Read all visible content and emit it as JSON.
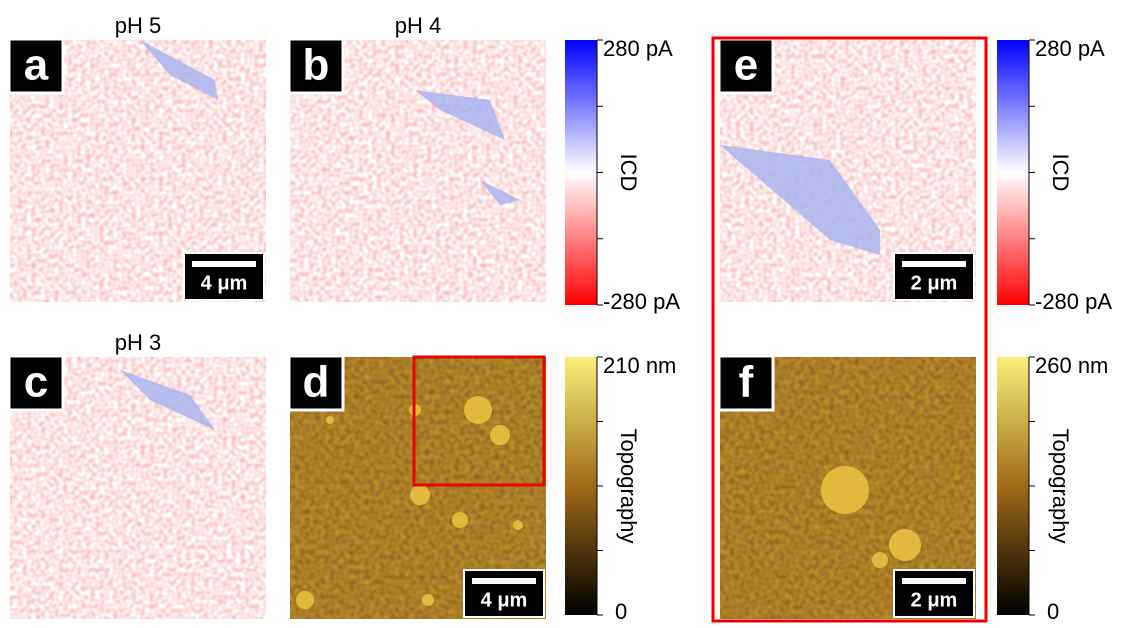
{
  "panels": [
    {
      "label": "a",
      "title": "pH 5",
      "scale_bar": "4 μm"
    },
    {
      "label": "b",
      "title": "pH 4"
    },
    {
      "label": "c",
      "title": "pH 3"
    },
    {
      "label": "d",
      "scale_bar": "4 μm"
    },
    {
      "label": "e",
      "scale_bar": "2 μm"
    },
    {
      "label": "f",
      "scale_bar": "2 μm"
    }
  ],
  "colorbars": [
    {
      "label": "ICD",
      "max": "280 pA",
      "min": "-280 pA"
    },
    {
      "label": "Topography",
      "max": "210 nm",
      "min": "0"
    },
    {
      "label": "ICD",
      "max": "280 pA",
      "min": "-280 pA"
    },
    {
      "label": "Topography",
      "max": "260 nm",
      "min": "0"
    }
  ]
}
